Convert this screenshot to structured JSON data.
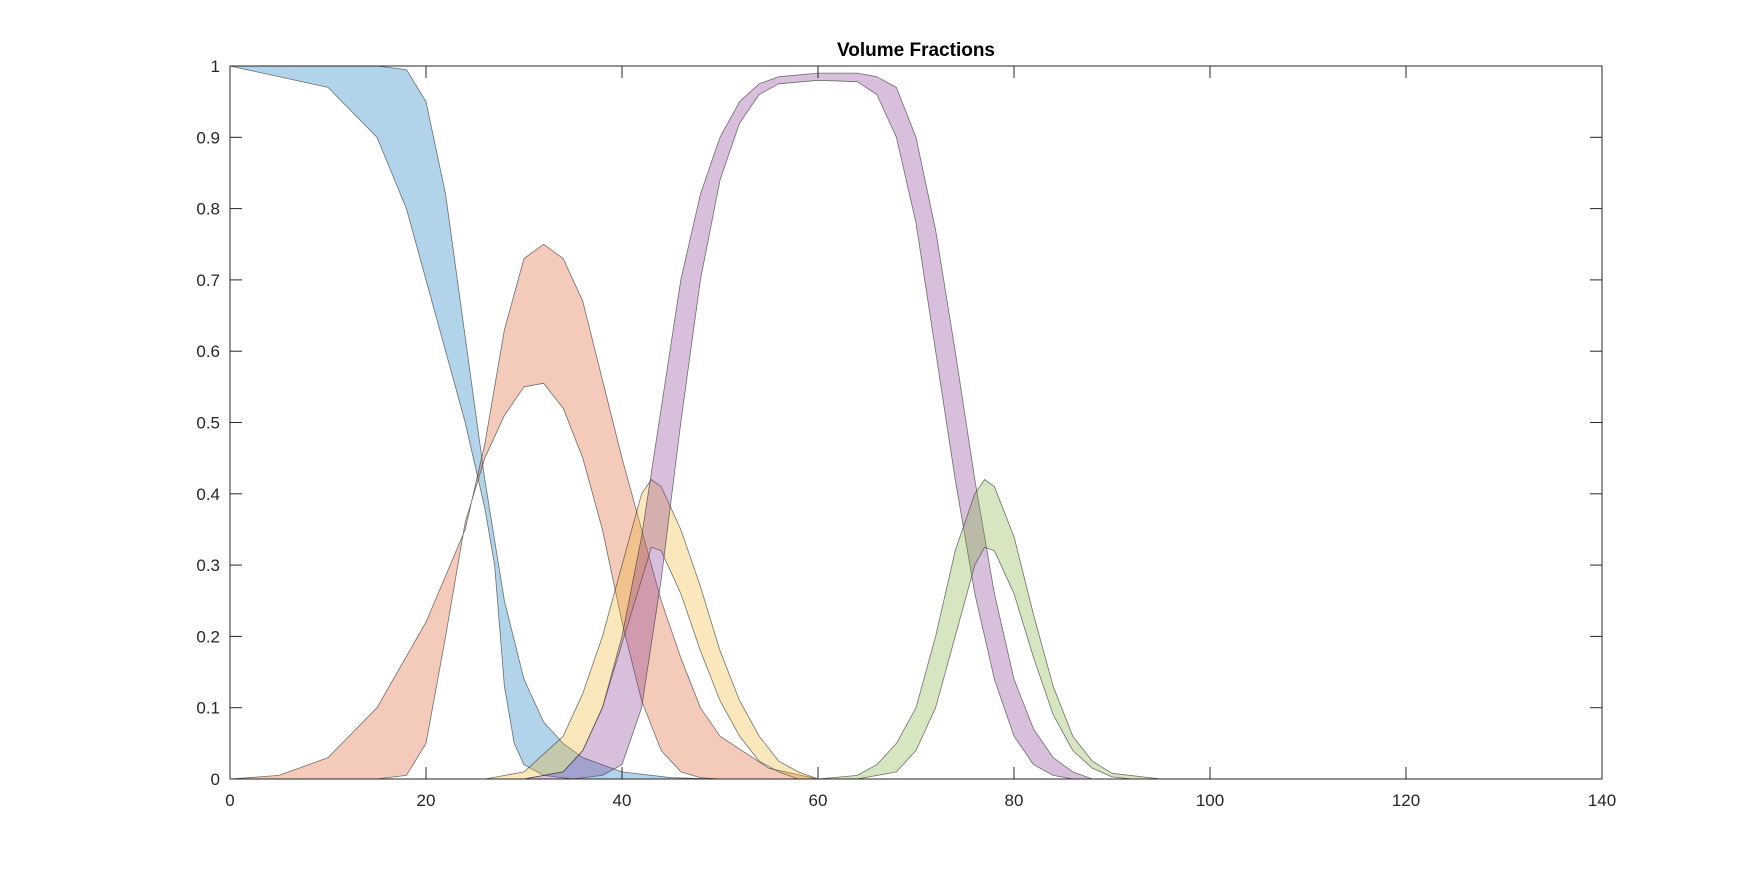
{
  "chart_data": {
    "type": "area",
    "title": "Volume Fractions",
    "xlabel": "",
    "ylabel": "",
    "xlim": [
      0,
      140
    ],
    "ylim": [
      0,
      1
    ],
    "x_ticks": [
      0,
      20,
      40,
      60,
      80,
      100,
      120,
      140
    ],
    "y_ticks": [
      0,
      0.1,
      0.2,
      0.3,
      0.4,
      0.5,
      0.6,
      0.7,
      0.8,
      0.9,
      1
    ],
    "x_tick_labels": [
      "0",
      "20",
      "40",
      "60",
      "80",
      "100",
      "120",
      "140"
    ],
    "y_tick_labels": [
      "0",
      "0.1",
      "0.2",
      "0.3",
      "0.4",
      "0.5",
      "0.6",
      "0.7",
      "0.8",
      "0.9",
      "1"
    ],
    "grid": false,
    "legend": "none",
    "series": [
      {
        "color": "#0072bd",
        "upper": [
          [
            0,
            1
          ],
          [
            10,
            1
          ],
          [
            15,
            1
          ],
          [
            18,
            0.995
          ],
          [
            20,
            0.95
          ],
          [
            22,
            0.82
          ],
          [
            24,
            0.62
          ],
          [
            26,
            0.42
          ],
          [
            28,
            0.25
          ],
          [
            30,
            0.14
          ],
          [
            32,
            0.08
          ],
          [
            34,
            0.05
          ],
          [
            36,
            0.03
          ],
          [
            40,
            0.01
          ],
          [
            45,
            0.002
          ],
          [
            50,
            0
          ]
        ],
        "lower": [
          [
            0,
            1
          ],
          [
            10,
            0.97
          ],
          [
            15,
            0.9
          ],
          [
            18,
            0.8
          ],
          [
            20,
            0.7
          ],
          [
            22,
            0.6
          ],
          [
            24,
            0.5
          ],
          [
            26,
            0.38
          ],
          [
            27,
            0.3
          ],
          [
            28,
            0.13
          ],
          [
            29,
            0.05
          ],
          [
            30,
            0.02
          ],
          [
            32,
            0.005
          ],
          [
            35,
            0
          ],
          [
            50,
            0
          ]
        ]
      },
      {
        "color": "#d95319",
        "upper": [
          [
            0,
            0
          ],
          [
            5,
            0.005
          ],
          [
            10,
            0.03
          ],
          [
            15,
            0.1
          ],
          [
            20,
            0.22
          ],
          [
            24,
            0.35
          ],
          [
            26,
            0.47
          ],
          [
            28,
            0.63
          ],
          [
            30,
            0.73
          ],
          [
            32,
            0.75
          ],
          [
            34,
            0.73
          ],
          [
            36,
            0.67
          ],
          [
            38,
            0.56
          ],
          [
            40,
            0.45
          ],
          [
            42,
            0.35
          ],
          [
            44,
            0.25
          ],
          [
            46,
            0.17
          ],
          [
            48,
            0.1
          ],
          [
            50,
            0.06
          ],
          [
            55,
            0.015
          ],
          [
            60,
            0
          ]
        ],
        "lower": [
          [
            0,
            0
          ],
          [
            15,
            0
          ],
          [
            18,
            0.005
          ],
          [
            20,
            0.05
          ],
          [
            22,
            0.2
          ],
          [
            24,
            0.36
          ],
          [
            26,
            0.45
          ],
          [
            28,
            0.51
          ],
          [
            30,
            0.55
          ],
          [
            32,
            0.555
          ],
          [
            34,
            0.52
          ],
          [
            36,
            0.45
          ],
          [
            38,
            0.35
          ],
          [
            40,
            0.22
          ],
          [
            42,
            0.11
          ],
          [
            44,
            0.04
          ],
          [
            46,
            0.01
          ],
          [
            48,
            0.002
          ],
          [
            50,
            0
          ]
        ]
      },
      {
        "color": "#edb120",
        "upper": [
          [
            26,
            0
          ],
          [
            30,
            0.01
          ],
          [
            34,
            0.06
          ],
          [
            36,
            0.12
          ],
          [
            38,
            0.2
          ],
          [
            40,
            0.3
          ],
          [
            42,
            0.4
          ],
          [
            43,
            0.42
          ],
          [
            44,
            0.41
          ],
          [
            46,
            0.35
          ],
          [
            48,
            0.27
          ],
          [
            50,
            0.18
          ],
          [
            52,
            0.11
          ],
          [
            54,
            0.06
          ],
          [
            56,
            0.025
          ],
          [
            58,
            0.01
          ],
          [
            60,
            0
          ]
        ],
        "lower": [
          [
            30,
            0
          ],
          [
            34,
            0.01
          ],
          [
            36,
            0.04
          ],
          [
            38,
            0.1
          ],
          [
            40,
            0.19
          ],
          [
            42,
            0.28
          ],
          [
            43,
            0.325
          ],
          [
            44,
            0.32
          ],
          [
            46,
            0.26
          ],
          [
            48,
            0.18
          ],
          [
            50,
            0.11
          ],
          [
            52,
            0.06
          ],
          [
            54,
            0.025
          ],
          [
            56,
            0.01
          ],
          [
            58,
            0
          ]
        ]
      },
      {
        "color": "#7e2f8e",
        "upper": [
          [
            30,
            0
          ],
          [
            34,
            0.01
          ],
          [
            36,
            0.04
          ],
          [
            38,
            0.1
          ],
          [
            40,
            0.2
          ],
          [
            42,
            0.34
          ],
          [
            44,
            0.52
          ],
          [
            46,
            0.7
          ],
          [
            48,
            0.82
          ],
          [
            50,
            0.9
          ],
          [
            52,
            0.95
          ],
          [
            54,
            0.975
          ],
          [
            56,
            0.985
          ],
          [
            60,
            0.99
          ],
          [
            64,
            0.99
          ],
          [
            66,
            0.985
          ],
          [
            68,
            0.97
          ],
          [
            70,
            0.9
          ],
          [
            72,
            0.77
          ],
          [
            74,
            0.6
          ],
          [
            76,
            0.42
          ],
          [
            78,
            0.26
          ],
          [
            80,
            0.14
          ],
          [
            82,
            0.07
          ],
          [
            84,
            0.03
          ],
          [
            86,
            0.01
          ],
          [
            88,
            0
          ]
        ],
        "lower": [
          [
            35,
            0
          ],
          [
            38,
            0.005
          ],
          [
            40,
            0.02
          ],
          [
            42,
            0.1
          ],
          [
            44,
            0.28
          ],
          [
            46,
            0.5
          ],
          [
            48,
            0.7
          ],
          [
            50,
            0.84
          ],
          [
            52,
            0.92
          ],
          [
            54,
            0.96
          ],
          [
            56,
            0.975
          ],
          [
            60,
            0.98
          ],
          [
            64,
            0.978
          ],
          [
            66,
            0.96
          ],
          [
            68,
            0.9
          ],
          [
            70,
            0.78
          ],
          [
            72,
            0.6
          ],
          [
            74,
            0.42
          ],
          [
            76,
            0.26
          ],
          [
            78,
            0.14
          ],
          [
            80,
            0.06
          ],
          [
            82,
            0.02
          ],
          [
            84,
            0.005
          ],
          [
            86,
            0
          ]
        ]
      },
      {
        "color": "#77ac30",
        "upper": [
          [
            60,
            0
          ],
          [
            64,
            0.005
          ],
          [
            66,
            0.02
          ],
          [
            68,
            0.05
          ],
          [
            70,
            0.1
          ],
          [
            72,
            0.2
          ],
          [
            74,
            0.32
          ],
          [
            76,
            0.4
          ],
          [
            77,
            0.42
          ],
          [
            78,
            0.41
          ],
          [
            80,
            0.34
          ],
          [
            82,
            0.23
          ],
          [
            84,
            0.13
          ],
          [
            86,
            0.06
          ],
          [
            88,
            0.025
          ],
          [
            90,
            0.008
          ],
          [
            95,
            0
          ]
        ],
        "lower": [
          [
            64,
            0
          ],
          [
            68,
            0.01
          ],
          [
            70,
            0.04
          ],
          [
            72,
            0.1
          ],
          [
            74,
            0.2
          ],
          [
            76,
            0.3
          ],
          [
            77,
            0.325
          ],
          [
            78,
            0.32
          ],
          [
            80,
            0.26
          ],
          [
            82,
            0.17
          ],
          [
            84,
            0.09
          ],
          [
            86,
            0.04
          ],
          [
            88,
            0.015
          ],
          [
            90,
            0.003
          ],
          [
            92,
            0
          ]
        ]
      }
    ]
  }
}
